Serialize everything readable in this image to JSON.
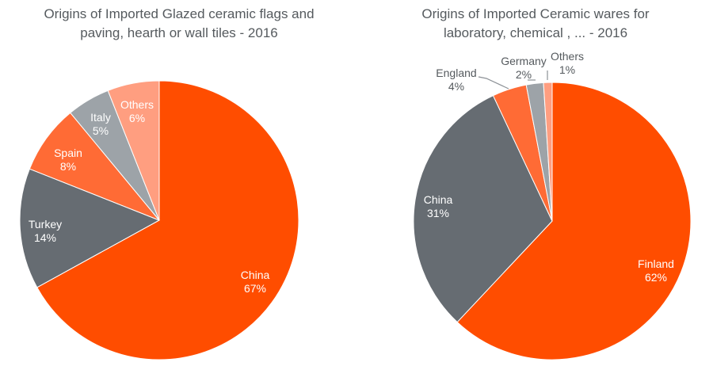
{
  "colors": {
    "orange": "#ff4d00",
    "dark_gray": "#666c72",
    "light_orange": "#ff6b35",
    "gray": "#9da3a8",
    "salmon": "#ff9e80",
    "leader_line": "#8c9196"
  },
  "chart_data": [
    {
      "type": "pie",
      "title_lines": [
        "Origins of Imported Glazed ceramic flags and",
        "paving, hearth or wall tiles - 2016"
      ],
      "slices": [
        {
          "label": "China",
          "value": 67,
          "value_label": "67%",
          "color": "#ff4d00",
          "text_color": "#ffffff"
        },
        {
          "label": "Turkey",
          "value": 14,
          "value_label": "14%",
          "color": "#666c72",
          "text_color": "#ffffff"
        },
        {
          "label": "Spain",
          "value": 8,
          "value_label": "8%",
          "color": "#ff6b35",
          "text_color": "#ffffff"
        },
        {
          "label": "Italy",
          "value": 5,
          "value_label": "5%",
          "color": "#9da3a8",
          "text_color": "#ffffff"
        },
        {
          "label": "Others",
          "value": 6,
          "value_label": "6%",
          "color": "#ff9e80",
          "text_color": "#ffffff"
        }
      ]
    },
    {
      "type": "pie",
      "title_lines": [
        "Origins of Imported Ceramic wares for",
        "laboratory, chemical , ... - 2016"
      ],
      "slices": [
        {
          "label": "Finland",
          "value": 62,
          "value_label": "62%",
          "color": "#ff4d00",
          "text_color": "#ffffff"
        },
        {
          "label": "China",
          "value": 31,
          "value_label": "31%",
          "color": "#666c72",
          "text_color": "#ffffff"
        },
        {
          "label": "England",
          "value": 4,
          "value_label": "4%",
          "color": "#ff6b35",
          "text_color": "#555a5e"
        },
        {
          "label": "Germany",
          "value": 2,
          "value_label": "2%",
          "color": "#9da3a8",
          "text_color": "#555a5e"
        },
        {
          "label": "Others",
          "value": 1,
          "value_label": "1%",
          "color": "#ff9e80",
          "text_color": "#555a5e"
        }
      ]
    }
  ]
}
